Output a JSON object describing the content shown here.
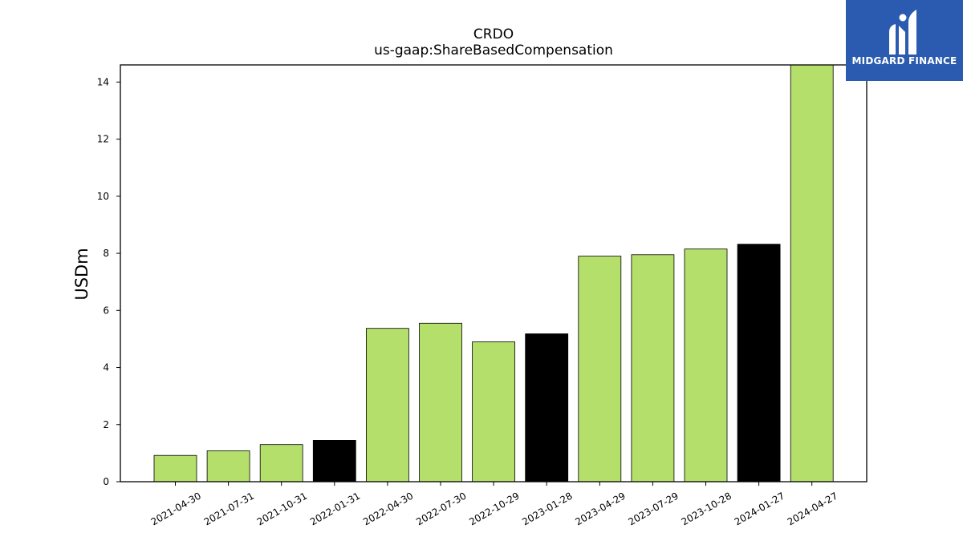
{
  "chart_data": {
    "type": "bar",
    "title": "CRDO",
    "subtitle": "us-gaap:ShareBasedCompensation",
    "ylabel": "USDm",
    "xlabel": "",
    "ylim": [
      0,
      14.6
    ],
    "yticks": [
      0,
      2,
      4,
      6,
      8,
      10,
      12,
      14
    ],
    "grid": false,
    "categories": [
      "2021-04-30",
      "2021-07-31",
      "2021-10-31",
      "2022-01-31",
      "2022-04-30",
      "2022-07-30",
      "2022-10-29",
      "2023-01-28",
      "2023-04-29",
      "2023-07-29",
      "2023-10-28",
      "2024-01-27",
      "2024-04-27"
    ],
    "values": [
      0.92,
      1.08,
      1.3,
      1.45,
      5.37,
      5.55,
      4.9,
      5.18,
      7.9,
      7.95,
      8.15,
      8.32,
      14.6
    ],
    "bar_colors": [
      "#b5df6b",
      "#b5df6b",
      "#b5df6b",
      "#000000",
      "#b5df6b",
      "#b5df6b",
      "#b5df6b",
      "#000000",
      "#b5df6b",
      "#b5df6b",
      "#b5df6b",
      "#000000",
      "#b5df6b"
    ]
  },
  "logo": {
    "text": "MIDGARD FINANCE",
    "background": "#2a5bb0",
    "icon": "midgard-m-logo-icon"
  }
}
